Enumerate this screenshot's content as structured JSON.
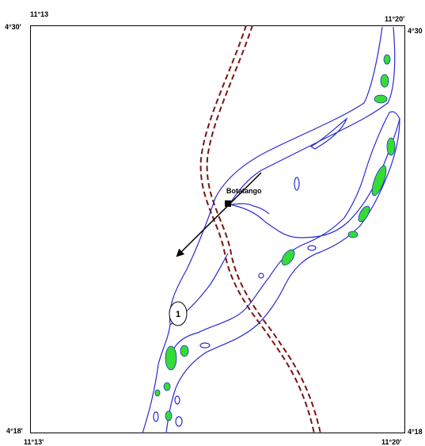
{
  "coords": {
    "top_left_lon": "11°13",
    "top_right_lon": "11°20'",
    "top_left_lat": "4°30'",
    "top_right_lat": "4°30",
    "bottom_left_lat": "4°18'",
    "bottom_right_lat": "4°18",
    "bottom_left_lon": "11°13'",
    "bottom_right_lon": "11°20'"
  },
  "places": {
    "town": "Botatango",
    "marker": "1"
  },
  "colors": {
    "river_outline": "#2a2ad0",
    "sandbar_fill": "#33dd33",
    "road": "#7a1414"
  }
}
